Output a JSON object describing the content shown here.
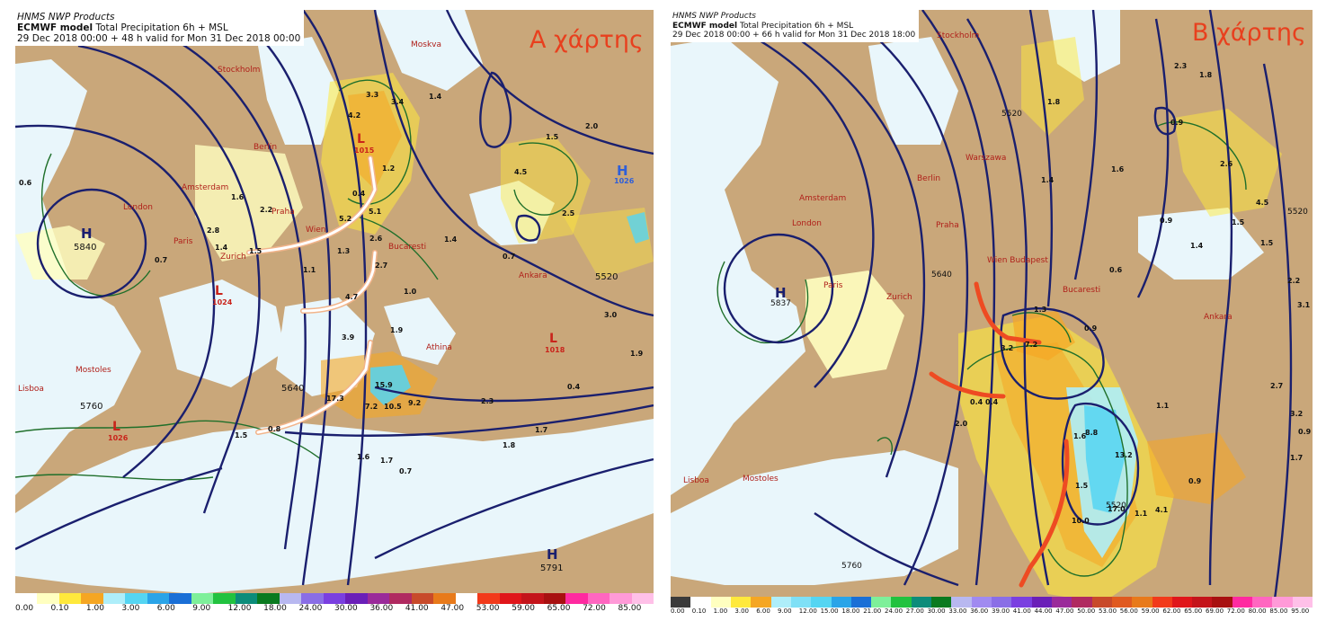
{
  "panel_a": {
    "header": {
      "line1": "HNMS NWP Products",
      "line2_bold": "ECMWF model",
      "line2_rest": " Total Precipitation 6h + MSL",
      "line3": "29 Dec 2018 00:00 + 48 h valid for Mon 31 Dec 2018 00:00"
    },
    "title": "Α χάρτης",
    "cities": {
      "moskva": "Moskva",
      "stockholm": "Stockholm",
      "berlin": "Berlin",
      "amsterdam": "Amsterdam",
      "london": "London",
      "praha": "Praha",
      "wien": "Wien",
      "zurich": "Zurich",
      "paris": "Paris",
      "bucaresti": "Bucaresti",
      "athina": "Athina",
      "ankara": "Ankara",
      "mostoles": "Mostoles",
      "lisboa": "Lisboa"
    },
    "centers": {
      "h_west": "H",
      "h_west_hgt": "5840",
      "h_east": "H",
      "h_east_press": "1026",
      "h_south": "H",
      "h_south_hgt": "5791",
      "l_north": "L",
      "l_north_press": "1015",
      "l_west": "L",
      "l_west_press": "1024",
      "l_east": "L",
      "l_east_press": "1018",
      "l_south": "L",
      "l_south_press": "1026"
    },
    "heights": {
      "h5640": "5640",
      "h5760": "5760",
      "h5520": "5520"
    },
    "precip": [
      "0.6",
      "0.7",
      "1.6",
      "2.8",
      "2.2",
      "1.5",
      "1.4",
      "3.3",
      "3.4",
      "1.4",
      "4.2",
      "1.2",
      "0.4",
      "5.2",
      "5.1",
      "2.6",
      "2.7",
      "1.1",
      "1.3",
      "4.7",
      "1.0",
      "3.9",
      "1.9",
      "4.5",
      "2.5",
      "1.5",
      "2.0",
      "1.4",
      "0.7",
      "3.0",
      "1.9",
      "15.9",
      "17.3",
      "7.2",
      "10.5",
      "9.2",
      "2.3",
      "1.8",
      "1.6",
      "1.7",
      "0.8",
      "1.5",
      "0.4",
      "1.7",
      "0.7"
    ],
    "colorbar": {
      "colors": [
        "#ffffff",
        "#ffffc0",
        "#ffe93c",
        "#f5a623",
        "#aeeefa",
        "#55d5f2",
        "#2aa4e8",
        "#1a6fd6",
        "#7ef09a",
        "#22c23f",
        "#0c8c7a",
        "#0a7a1f",
        "#b8b8f0",
        "#8a6ee6",
        "#7a3fe0",
        "#6a1fb8",
        "#9a2a9a",
        "#b02a60",
        "#c84a2a",
        "#e87a1a",
        "#ffffff",
        "#f23a1a",
        "#e0161a",
        "#c4141a",
        "#a81010",
        "#ff2aa0",
        "#ff66c0",
        "#ff9ad8",
        "#ffc0e8"
      ],
      "ticks": [
        "0.00",
        "0.10",
        "1.00",
        "3.00",
        "6.00",
        "9.00",
        "12.00",
        "18.00",
        "24.00",
        "30.00",
        "36.00",
        "41.00",
        "47.00",
        "53.00",
        "59.00",
        "65.00",
        "72.00",
        "85.00"
      ]
    }
  },
  "panel_b": {
    "header": {
      "line1": "HNMS NWP Products",
      "line2_bold": "ECMWF model",
      "line2_rest": " Total Precipitation 6h + MSL",
      "line3": "29 Dec 2018 00:00 + 66 h valid for Mon 31 Dec 2018 18:00"
    },
    "title": "Β χάρτης",
    "cities": {
      "stockholm": "Stockholm",
      "warszawa": "Warszawa",
      "berlin": "Berlin",
      "amsterdam": "Amsterdam",
      "london": "London",
      "praha": "Praha",
      "wien_budapest": "Wien Budapest",
      "paris": "Paris",
      "zurich": "Zurich",
      "bucaresti": "Bucaresti",
      "ankara": "Ankara",
      "mostoles": "Mostoles",
      "lisboa": "Lisboa"
    },
    "centers": {
      "h_west": "H",
      "h_west_hgt": "5837"
    },
    "heights": {
      "h5640": "5640",
      "h5520_n": "5520",
      "h5520_e": "5520",
      "h5520_s": "5520",
      "h5760": "5760"
    },
    "precip": [
      "2.3",
      "1.8",
      "0.9",
      "1.4",
      "1.6",
      "2.6",
      "4.5",
      "1.8",
      "0.9",
      "1.5",
      "1.4",
      "1.5",
      "2.2",
      "3.1",
      "0.6",
      "0.9",
      "1.3",
      "7.2",
      "3.2",
      "0.4",
      "0.4",
      "2.0",
      "1.5",
      "1.6",
      "1.1",
      "2.7",
      "3.2",
      "0.9",
      "1.7",
      "8.8",
      "17.0",
      "10.0",
      "13.2",
      "4.1",
      "1.1",
      "0.9"
    ],
    "colorbar": {
      "colors": [
        "#3a3a3a",
        "#ffffff",
        "#ffffc0",
        "#ffe93c",
        "#f5a623",
        "#aeeefa",
        "#7fe0f6",
        "#55d5f2",
        "#2aa4e8",
        "#1a6fd6",
        "#7ef09a",
        "#22c23f",
        "#0c8c7a",
        "#0a7a1f",
        "#b8b8f0",
        "#a08af0",
        "#8a6ee6",
        "#7a3fe0",
        "#6a1fb8",
        "#9a2a9a",
        "#b02a60",
        "#c84a2a",
        "#e05a20",
        "#e87a1a",
        "#f23a1a",
        "#e0161a",
        "#c4141a",
        "#a81010",
        "#ff2aa0",
        "#ff66c0",
        "#ff9ad8",
        "#ffc0e8"
      ],
      "ticks": [
        "0.00",
        "0.10",
        "1.00",
        "3.00",
        "6.00",
        "9.00",
        "12.00",
        "15.00",
        "18.00",
        "21.00",
        "24.00",
        "27.00",
        "30.00",
        "33.00",
        "36.00",
        "39.00",
        "41.00",
        "44.00",
        "47.00",
        "50.00",
        "53.00",
        "56.00",
        "59.00",
        "62.00",
        "65.00",
        "69.00",
        "72.00",
        "80.00",
        "85.00",
        "95.00"
      ]
    }
  }
}
